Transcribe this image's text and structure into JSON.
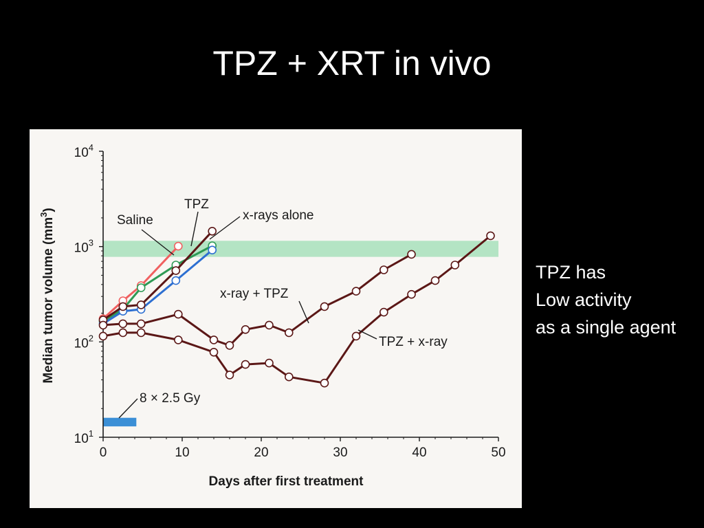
{
  "slide": {
    "title": "TPZ + XRT in vivo",
    "note_lines": [
      "TPZ has",
      "Low activity",
      "as a single agent"
    ]
  },
  "chart_data": {
    "type": "line",
    "title": "",
    "xlabel": "Days after first treatment",
    "ylabel": "Median tumor volume (mm",
    "ylabel_sup": "3",
    "ylabel_close": ")",
    "y_scale": "log",
    "xlim": [
      0,
      50
    ],
    "ylim": [
      10,
      10000
    ],
    "x_ticks": [
      0,
      10,
      20,
      30,
      40,
      50
    ],
    "y_ticks": [
      {
        "value": 10,
        "base": "10",
        "exp": "1"
      },
      {
        "value": 100,
        "base": "10",
        "exp": "2"
      },
      {
        "value": 1000,
        "base": "10",
        "exp": "3"
      },
      {
        "value": 10000,
        "base": "10",
        "exp": "4"
      }
    ],
    "shaded_band": {
      "y_range": [
        780,
        1150
      ],
      "color": "#b4e4c4"
    },
    "treatment_bar": {
      "x_range": [
        0,
        4.2
      ],
      "y_range": [
        13,
        16
      ],
      "color": "#3b8fd6",
      "label": "8 × 2.5 Gy"
    },
    "grid": false,
    "series": [
      {
        "name": "Saline",
        "color": "#f06060",
        "x": [
          0,
          2.5,
          4.8,
          9.5
        ],
        "y": [
          175,
          270,
          390,
          1010
        ]
      },
      {
        "name": "TPZ",
        "color": "#5b1716",
        "x": [
          0,
          2.5,
          4.8,
          9.2,
          13.8
        ],
        "y": [
          170,
          235,
          245,
          560,
          1450
        ]
      },
      {
        "name": "x-rays alone",
        "color": "#2d6fd1",
        "x": [
          0,
          2.5,
          4.8,
          9.2,
          13.8
        ],
        "y": [
          155,
          210,
          220,
          440,
          920
        ]
      },
      {
        "name": "",
        "color": "#2f9a55",
        "x": [
          0,
          2.5,
          4.8,
          9.2,
          13.8
        ],
        "y": [
          165,
          220,
          370,
          640,
          1020
        ]
      },
      {
        "name": "x-ray + TPZ",
        "color": "#5b1716",
        "x": [
          0,
          2.5,
          4.8,
          9.5,
          14,
          16,
          18,
          21,
          23.5,
          28,
          32,
          35.5,
          39
        ],
        "y": [
          150,
          155,
          155,
          195,
          105,
          92,
          135,
          150,
          125,
          235,
          340,
          570,
          830
        ]
      },
      {
        "name": "TPZ + x-ray",
        "color": "#5b1716",
        "x": [
          0,
          2.5,
          4.8,
          9.5,
          14,
          16,
          18,
          21,
          23.5,
          28,
          32,
          35.5,
          39,
          42,
          44.5,
          49
        ],
        "y": [
          115,
          125,
          125,
          105,
          78,
          45,
          58,
          60,
          43,
          37,
          115,
          205,
          315,
          440,
          640,
          1300
        ]
      }
    ],
    "annotations": [
      {
        "text": "Saline",
        "series": "Saline"
      },
      {
        "text": "TPZ",
        "series": "TPZ"
      },
      {
        "text": "x-rays alone",
        "series": "x-rays alone"
      },
      {
        "text": "x-ray + TPZ",
        "series": "x-ray + TPZ"
      },
      {
        "text": "TPZ + x-ray",
        "series": "TPZ + x-ray"
      },
      {
        "text": "8 × 2.5 Gy",
        "series": "treatment"
      }
    ]
  }
}
